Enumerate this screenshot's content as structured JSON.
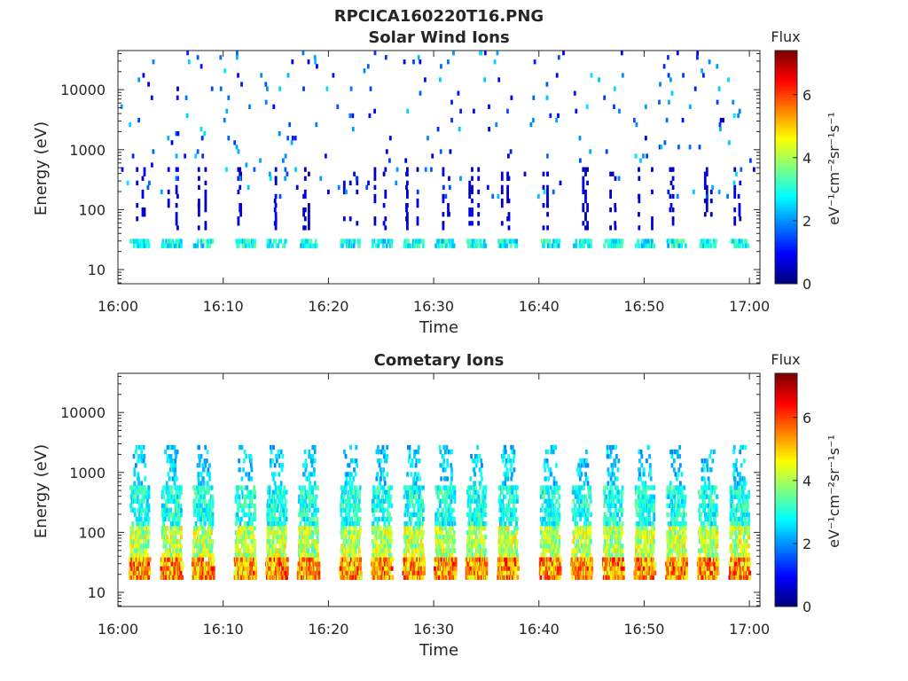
{
  "figure": {
    "title": "RPCICA160220T16.PNG"
  },
  "chart_data": [
    {
      "type": "heatmap",
      "title": "Solar Wind Ions",
      "xlabel": "Time",
      "ylabel": "Energy (eV)",
      "xlim": [
        "16:00",
        "17:01"
      ],
      "x_ticks": [
        "16:00",
        "16:10",
        "16:20",
        "16:30",
        "16:40",
        "16:50",
        "17:00"
      ],
      "y_scale": "log",
      "ylim": [
        5.8,
        45000
      ],
      "y_ticks": [
        "10",
        "100",
        "1000",
        "10000"
      ],
      "grid": false,
      "colorbar": {
        "title": "Flux",
        "label": "eV⁻¹cm⁻²sr⁻¹s⁻¹",
        "range": [
          0,
          7.4
        ],
        "ticks": [
          "0",
          "2",
          "4",
          "6"
        ],
        "colormap": "jet"
      },
      "pattern": {
        "burst_times": [
          "16:02",
          "16:05",
          "16:08",
          "16:12",
          "16:15",
          "16:18",
          "16:22",
          "16:25",
          "16:28",
          "16:31",
          "16:34",
          "16:37",
          "16:41",
          "16:44",
          "16:47",
          "16:50",
          "16:53",
          "16:56",
          "16:59"
        ],
        "low_band_energy": [
          20,
          32
        ],
        "low_band_flux": 3.0,
        "streak_energy": [
          45,
          450
        ],
        "streak_flux": 0.3,
        "scatter_energy": [
          150,
          40000
        ],
        "scatter_flux": 2.2
      }
    },
    {
      "type": "heatmap",
      "title": "Cometary Ions",
      "xlabel": "Time",
      "ylabel": "Energy (eV)",
      "xlim": [
        "16:00",
        "17:01"
      ],
      "x_ticks": [
        "16:00",
        "16:10",
        "16:20",
        "16:30",
        "16:40",
        "16:50",
        "17:00"
      ],
      "y_scale": "log",
      "ylim": [
        5.8,
        45000
      ],
      "y_ticks": [
        "10",
        "100",
        "1000",
        "10000"
      ],
      "grid": false,
      "colorbar": {
        "title": "Flux",
        "label": "eV⁻¹cm⁻²sr⁻¹s⁻¹",
        "range": [
          0,
          7.4
        ],
        "ticks": [
          "0",
          "2",
          "4",
          "6"
        ],
        "colormap": "jet"
      },
      "pattern": {
        "burst_times": [
          "16:02",
          "16:05",
          "16:08",
          "16:12",
          "16:15",
          "16:18",
          "16:22",
          "16:25",
          "16:28",
          "16:31",
          "16:34",
          "16:37",
          "16:41",
          "16:44",
          "16:47",
          "16:50",
          "16:53",
          "16:56",
          "16:59"
        ],
        "core_energy": [
          15,
          35
        ],
        "core_flux": 5.5,
        "mid_energy": [
          35,
          110
        ],
        "mid_flux": 4.2,
        "upper_energy": [
          110,
          600
        ],
        "upper_flux": 3.0,
        "sparse_energy": [
          600,
          2500
        ],
        "sparse_flux": 2.5
      }
    }
  ]
}
